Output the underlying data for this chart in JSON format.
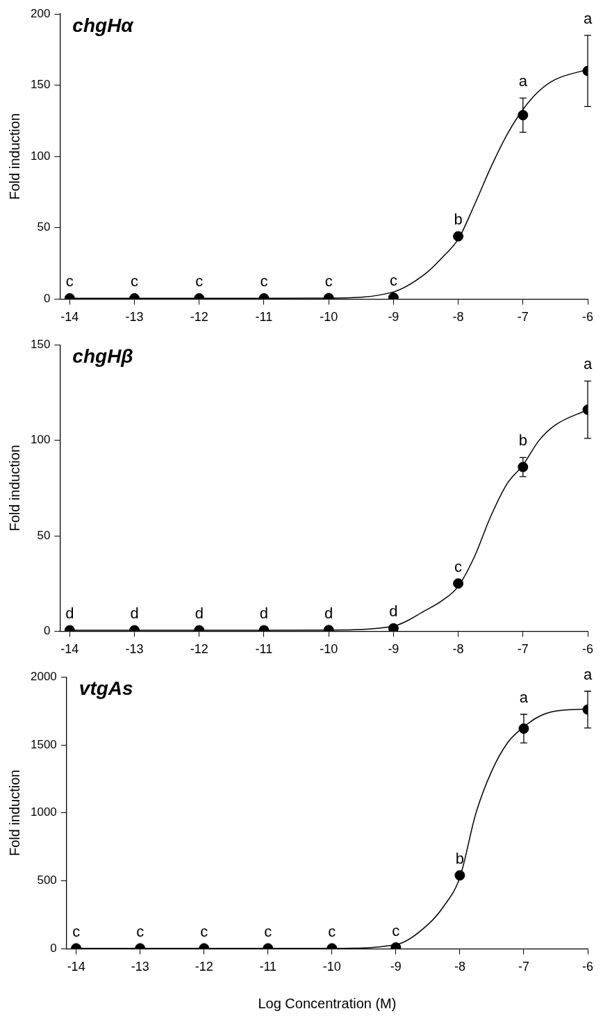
{
  "chart_data": [
    {
      "type": "scatter",
      "title": "chgHα",
      "ylabel": "Fold induction",
      "xlim": [
        -14.15,
        -6
      ],
      "xticks": [
        -14,
        -13,
        -12,
        -11,
        -10,
        -9,
        -8,
        -7,
        -6
      ],
      "ylim": [
        0,
        200
      ],
      "yticks": [
        0,
        50,
        100,
        150,
        200
      ],
      "grid": false,
      "legend": false,
      "series": [
        {
          "type": "scatter",
          "marker": "circle",
          "color": "#000000",
          "x": [
            -14,
            -13,
            -12,
            -11,
            -10,
            -9,
            -8,
            -7,
            -6
          ],
          "values": [
            0.5,
            0.5,
            0.5,
            0.5,
            0.7,
            1,
            44,
            129,
            160
          ],
          "errors": [
            null,
            null,
            null,
            null,
            null,
            null,
            null,
            12,
            25
          ]
        },
        {
          "type": "line",
          "color": "#000000",
          "x": [
            -14,
            -13,
            -12,
            -11,
            -10,
            -9,
            -8.5,
            -8.25,
            -8,
            -7.75,
            -7.5,
            -7.25,
            -7,
            -6.75,
            -6.5,
            -6
          ],
          "values": [
            0.5,
            0.5,
            0.5,
            0.5,
            0.7,
            5,
            18,
            29,
            42,
            66,
            92,
            115,
            133,
            146,
            154,
            161
          ]
        }
      ],
      "annotations": [
        {
          "text": "c",
          "x": -14,
          "y": 0.5
        },
        {
          "text": "c",
          "x": -13,
          "y": 0.5
        },
        {
          "text": "c",
          "x": -12,
          "y": 0.5
        },
        {
          "text": "c",
          "x": -11,
          "y": 0.5
        },
        {
          "text": "c",
          "x": -10,
          "y": 0.7
        },
        {
          "text": "c",
          "x": -9,
          "y": 1
        },
        {
          "text": "b",
          "x": -8,
          "y": 44
        },
        {
          "text": "a",
          "x": -7,
          "y": 129
        },
        {
          "text": "a",
          "x": -6,
          "y": 160
        }
      ]
    },
    {
      "type": "scatter",
      "title": "chgHβ",
      "ylabel": "Fold induction",
      "xlim": [
        -14.15,
        -6
      ],
      "xticks": [
        -14,
        -13,
        -12,
        -11,
        -10,
        -9,
        -8,
        -7,
        -6
      ],
      "ylim": [
        0,
        150
      ],
      "yticks": [
        0,
        50,
        100,
        150
      ],
      "grid": false,
      "legend": false,
      "series": [
        {
          "type": "scatter",
          "marker": "circle",
          "color": "#000000",
          "x": [
            -14,
            -13,
            -12,
            -11,
            -10,
            -9,
            -8,
            -7,
            -6
          ],
          "values": [
            0.5,
            0.5,
            0.5,
            0.5,
            0.6,
            1.5,
            25,
            86,
            116
          ],
          "errors": [
            null,
            null,
            null,
            null,
            null,
            null,
            null,
            5,
            15
          ]
        },
        {
          "type": "line",
          "color": "#000000",
          "x": [
            -14,
            -13,
            -12,
            -11,
            -10,
            -9,
            -8.5,
            -8.25,
            -8,
            -7.75,
            -7.5,
            -7.25,
            -7,
            -6.75,
            -6.5,
            -6
          ],
          "values": [
            0.5,
            0.5,
            0.5,
            0.5,
            0.6,
            2.7,
            11,
            16,
            23.5,
            39,
            60,
            77,
            87,
            100,
            108,
            116
          ]
        }
      ],
      "annotations": [
        {
          "text": "d",
          "x": -14,
          "y": 0.5
        },
        {
          "text": "d",
          "x": -13,
          "y": 0.5
        },
        {
          "text": "d",
          "x": -12,
          "y": 0.5
        },
        {
          "text": "d",
          "x": -11,
          "y": 0.5
        },
        {
          "text": "d",
          "x": -10,
          "y": 0.6
        },
        {
          "text": "d",
          "x": -9,
          "y": 1.5
        },
        {
          "text": "c",
          "x": -8,
          "y": 25
        },
        {
          "text": "b",
          "x": -7,
          "y": 86
        },
        {
          "text": "a",
          "x": -6,
          "y": 116
        }
      ]
    },
    {
      "type": "scatter",
      "title": "vtgAs",
      "ylabel": "Fold induction",
      "xlabel": "Log Concentration (M)",
      "xlim": [
        -14.15,
        -6
      ],
      "xticks": [
        -14,
        -13,
        -12,
        -11,
        -10,
        -9,
        -8,
        -7,
        -6
      ],
      "ylim": [
        0,
        2000
      ],
      "yticks": [
        0,
        500,
        1000,
        1500,
        2000
      ],
      "grid": false,
      "legend": false,
      "series": [
        {
          "type": "scatter",
          "marker": "circle",
          "color": "#000000",
          "x": [
            -14,
            -13,
            -12,
            -11,
            -10,
            -9,
            -8,
            -7,
            -6
          ],
          "values": [
            3,
            3,
            3,
            3,
            3,
            10,
            540,
            1620,
            1760
          ],
          "errors": [
            null,
            null,
            null,
            null,
            null,
            null,
            null,
            105,
            135
          ]
        },
        {
          "type": "line",
          "color": "#000000",
          "x": [
            -14,
            -13,
            -12,
            -11,
            -10,
            -9,
            -8.5,
            -8.25,
            -8,
            -7.75,
            -7.5,
            -7.25,
            -7,
            -6.75,
            -6.5,
            -6
          ],
          "values": [
            3,
            3,
            3,
            3,
            3,
            30,
            178,
            314,
            524,
            995,
            1309,
            1518,
            1633,
            1712,
            1749,
            1764
          ]
        }
      ],
      "annotations": [
        {
          "text": "c",
          "x": -14,
          "y": 3
        },
        {
          "text": "c",
          "x": -13,
          "y": 3
        },
        {
          "text": "c",
          "x": -12,
          "y": 3
        },
        {
          "text": "c",
          "x": -11,
          "y": 3
        },
        {
          "text": "c",
          "x": -10,
          "y": 3
        },
        {
          "text": "c",
          "x": -9,
          "y": 10
        },
        {
          "text": "b",
          "x": -8,
          "y": 540
        },
        {
          "text": "a",
          "x": -7,
          "y": 1620
        },
        {
          "text": "a",
          "x": -6,
          "y": 1760
        }
      ]
    }
  ]
}
